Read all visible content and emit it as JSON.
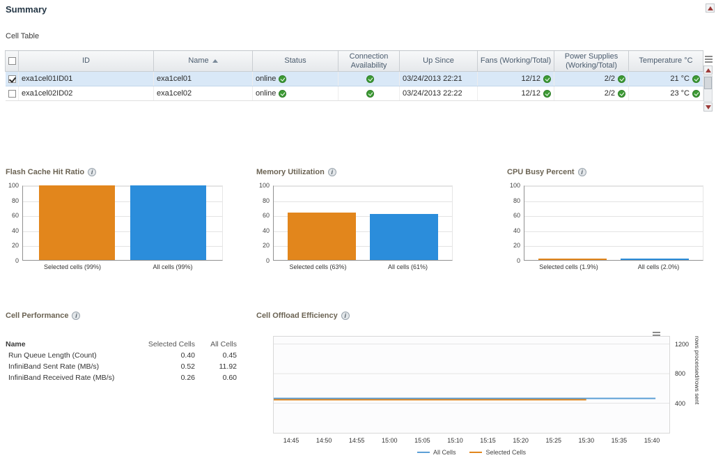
{
  "page": {
    "title": "Summary"
  },
  "cell_table": {
    "label": "Cell Table",
    "columns": {
      "id": "ID",
      "name": "Name",
      "status": "Status",
      "connection": "Connection Availability",
      "up_since": "Up Since",
      "fans": "Fans (Working/Total)",
      "power": "Power Supplies (Working/Total)",
      "temperature": "Temperature °C"
    },
    "rows": [
      {
        "selected": true,
        "checked": true,
        "id": "exa1cel01ID01",
        "name": "exa1cel01",
        "status": "online",
        "up_since": "03/24/2013 22:21",
        "fans": "12/12",
        "power": "2/2",
        "temperature": "21 °C"
      },
      {
        "selected": false,
        "checked": false,
        "id": "exa1cel02ID02",
        "name": "exa1cel02",
        "status": "online",
        "up_since": "03/24/2013 22:22",
        "fans": "12/12",
        "power": "2/2",
        "temperature": "23 °C"
      }
    ]
  },
  "colors": {
    "bar_orange": "#E2861C",
    "bar_blue": "#2B8DDB",
    "check_green": "#3D9B35"
  },
  "bar_charts": [
    {
      "title": "Flash Cache Hit Ratio",
      "type": "bar",
      "y_ticks": [
        0,
        20,
        40,
        60,
        80,
        100
      ],
      "y_max": 100,
      "bars": [
        {
          "label": "Selected cells (99%)",
          "value": 99,
          "color": "#E2861C"
        },
        {
          "label": "All cells (99%)",
          "value": 99,
          "color": "#2B8DDB"
        }
      ]
    },
    {
      "title": "Memory Utilization",
      "type": "bar",
      "y_ticks": [
        0,
        20,
        40,
        60,
        80,
        100
      ],
      "y_max": 100,
      "bars": [
        {
          "label": "Selected cells (63%)",
          "value": 63,
          "color": "#E2861C"
        },
        {
          "label": "All cells (61%)",
          "value": 61,
          "color": "#2B8DDB"
        }
      ]
    },
    {
      "title": "CPU Busy Percent",
      "type": "bar",
      "y_ticks": [
        0,
        20,
        40,
        60,
        80,
        100
      ],
      "y_max": 100,
      "bars": [
        {
          "label": "Selected cells (1.9%)",
          "value": 1.9,
          "color": "#E2861C"
        },
        {
          "label": "All cells (2.0%)",
          "value": 2.0,
          "color": "#2B8DDB"
        }
      ]
    }
  ],
  "cell_performance": {
    "title": "Cell Performance",
    "columns": {
      "name": "Name",
      "selected": "Selected Cells",
      "all": "All Cells"
    },
    "rows": [
      {
        "name": "Run Queue Length (Count)",
        "selected": "0.40",
        "all": "0.45"
      },
      {
        "name": "InfiniBand Sent Rate (MB/s)",
        "selected": "0.52",
        "all": "11.92"
      },
      {
        "name": "InfiniBand Received Rate (MB/s)",
        "selected": "0.26",
        "all": "0.60"
      }
    ]
  },
  "offload_chart": {
    "title": "Cell Offload Efficiency",
    "type": "line",
    "y_axis_label": "rows processed/rows sent",
    "y_ticks": [
      400,
      800,
      1200
    ],
    "y_max": 1300,
    "x_ticks": [
      "14:45",
      "14:50",
      "14:55",
      "15:00",
      "15:05",
      "15:10",
      "15:15",
      "15:20",
      "15:25",
      "15:30",
      "15:35",
      "15:40"
    ],
    "series": [
      {
        "name": "All Cells",
        "color": "#5C9FD6",
        "value": 465,
        "start_frac": 0.0,
        "end_frac": 0.965
      },
      {
        "name": "Selected Cells",
        "color": "#E2861C",
        "value": 448,
        "start_frac": 0.0,
        "end_frac": 0.79
      }
    ]
  }
}
